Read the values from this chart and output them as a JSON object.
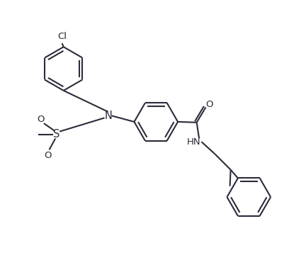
{
  "bg_color": "#ffffff",
  "line_color": "#2b2b3b",
  "line_width": 1.5,
  "font_size": 9.5,
  "figsize": [
    4.32,
    3.91
  ],
  "dpi": 100,
  "xlim": [
    0,
    10
  ],
  "ylim": [
    0,
    9.1
  ]
}
